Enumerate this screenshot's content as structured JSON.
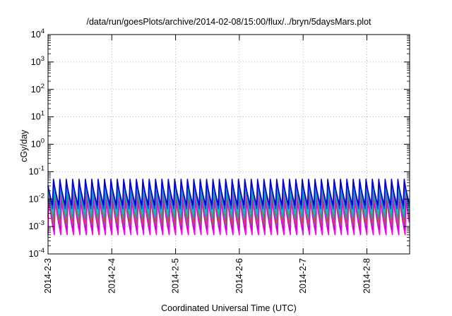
{
  "chart_data": {
    "type": "line",
    "title": "/data/run/goesPlots/archive/2014-02-08/15:00/flux/../bryn/5daysMars.plot",
    "xlabel": "Coordinated Universal Time (UTC)",
    "ylabel": "cGy/day",
    "y_scale": "log",
    "ylim_exponents": [
      -4,
      4
    ],
    "y_tick_exponents": [
      -4,
      -3,
      -2,
      -1,
      0,
      1,
      2,
      3,
      4
    ],
    "y_tick_base": "10",
    "x_tick_labels": [
      "2014-2-3",
      "2014-2-4",
      "2014-2-5",
      "2014-2-6",
      "2014-2-7",
      "2014-2-8"
    ],
    "x_range_days": [
      0,
      5.67
    ],
    "grid": true,
    "oscillation": {
      "period_days": 0.1,
      "cycles_visible": 57
    },
    "series": [
      {
        "color": "#ff00ff",
        "peak": 0.012,
        "trough": 0.0005
      },
      {
        "color": "#cc00cc",
        "peak": 0.018,
        "trough": 0.0007
      },
      {
        "color": "#a040a0",
        "peak": 0.025,
        "trough": 0.0009
      },
      {
        "color": "#c05050",
        "peak": 0.03,
        "trough": 0.0012
      },
      {
        "color": "#20a0a0",
        "peak": 0.035,
        "trough": 0.0018
      },
      {
        "color": "#00c8c8",
        "peak": 0.045,
        "trough": 0.003
      },
      {
        "color": "#3030ff",
        "peak": 0.055,
        "trough": 0.004
      },
      {
        "color": "#0000cc",
        "peak": 0.06,
        "trough": 0.006
      }
    ]
  }
}
